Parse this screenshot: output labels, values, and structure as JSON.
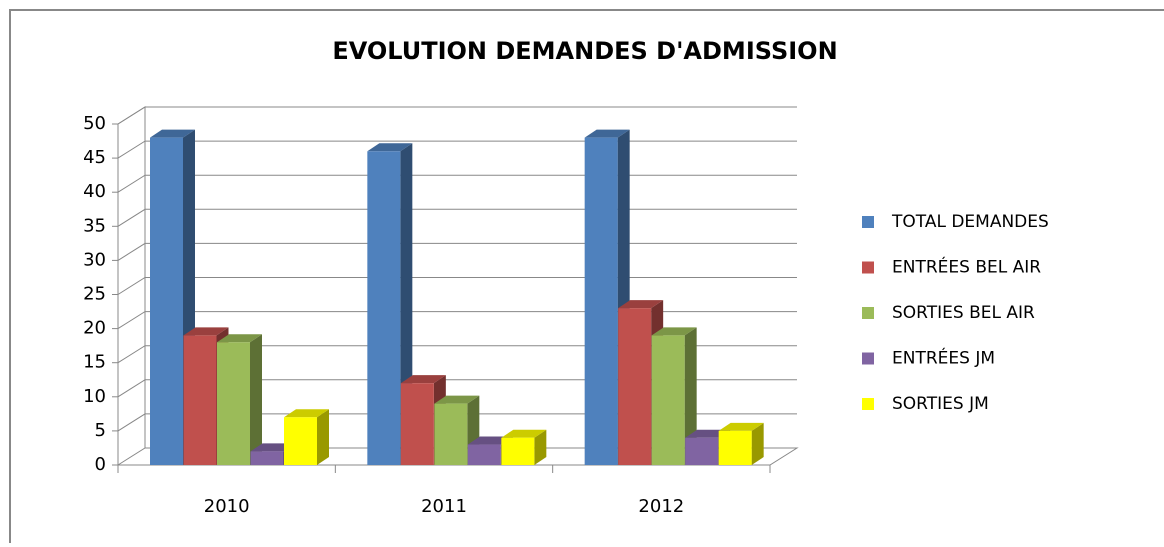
{
  "chart_data": {
    "type": "bar3d",
    "title": "EVOLUTION DEMANDES D'ADMISSION",
    "categories": [
      "2010",
      "2011",
      "2012"
    ],
    "series": [
      {
        "name": "TOTAL DEMANDES",
        "color": "#4f81bd",
        "values": [
          48,
          46,
          48
        ]
      },
      {
        "name": "ENTRÉES BEL AIR",
        "color": "#c0504d",
        "values": [
          19,
          12,
          23
        ]
      },
      {
        "name": "SORTIES BEL AIR",
        "color": "#9bbb59",
        "values": [
          18,
          9,
          19
        ]
      },
      {
        "name": "ENTRÉES JM",
        "color": "#8064a2",
        "values": [
          2,
          3,
          4
        ]
      },
      {
        "name": "SORTIES JM",
        "color": "#ffff00",
        "values": [
          7,
          4,
          5
        ]
      }
    ],
    "ylim": [
      0,
      50
    ],
    "yticks": [
      0,
      5,
      10,
      15,
      20,
      25,
      30,
      35,
      40,
      45,
      50
    ],
    "grid": true,
    "legend": "right"
  }
}
